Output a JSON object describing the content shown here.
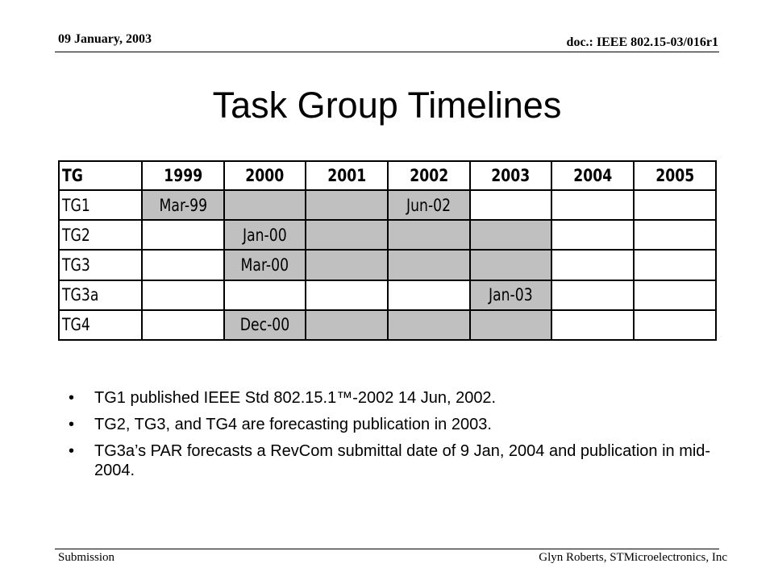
{
  "header": {
    "date": "09 January, 2003",
    "doc": "doc.: IEEE 802.15-03/016r1"
  },
  "title": "Task Group Timelines",
  "table": {
    "columns": [
      "TG",
      "1999",
      "2000",
      "2001",
      "2002",
      "2003",
      "2004",
      "2005"
    ],
    "rows": [
      {
        "tg": "TG1",
        "cells": [
          "Mar-99",
          "",
          "",
          "Jun-02",
          "",
          "",
          ""
        ],
        "shaded": [
          true,
          true,
          true,
          true,
          false,
          false,
          false
        ]
      },
      {
        "tg": "TG2",
        "cells": [
          "",
          "Jan-00",
          "",
          "",
          "",
          "",
          ""
        ],
        "shaded": [
          false,
          true,
          true,
          true,
          true,
          false,
          false
        ]
      },
      {
        "tg": "TG3",
        "cells": [
          "",
          "Mar-00",
          "",
          "",
          "",
          "",
          ""
        ],
        "shaded": [
          false,
          true,
          true,
          true,
          true,
          false,
          false
        ]
      },
      {
        "tg": "TG3a",
        "cells": [
          "",
          "",
          "",
          "",
          "Jan-03",
          "",
          ""
        ],
        "shaded": [
          false,
          false,
          false,
          false,
          true,
          false,
          false
        ]
      },
      {
        "tg": "TG4",
        "cells": [
          "",
          "Dec-00",
          "",
          "",
          "",
          "",
          ""
        ],
        "shaded": [
          false,
          true,
          true,
          true,
          true,
          false,
          false
        ]
      }
    ],
    "shade_color": "#c0c0c0"
  },
  "bullets": [
    "TG1 published IEEE Std 802.15.1™-2002 14 Jun, 2002.",
    "TG2, TG3, and TG4 are forecasting publication in 2003.",
    "TG3a’s PAR forecasts a RevCom submittal date of 9 Jan, 2004 and publication in mid-2004."
  ],
  "bullet_glyph": "•",
  "footer": {
    "left": "Submission",
    "right": "Glyn Roberts, STMicroelectronics, Inc"
  }
}
